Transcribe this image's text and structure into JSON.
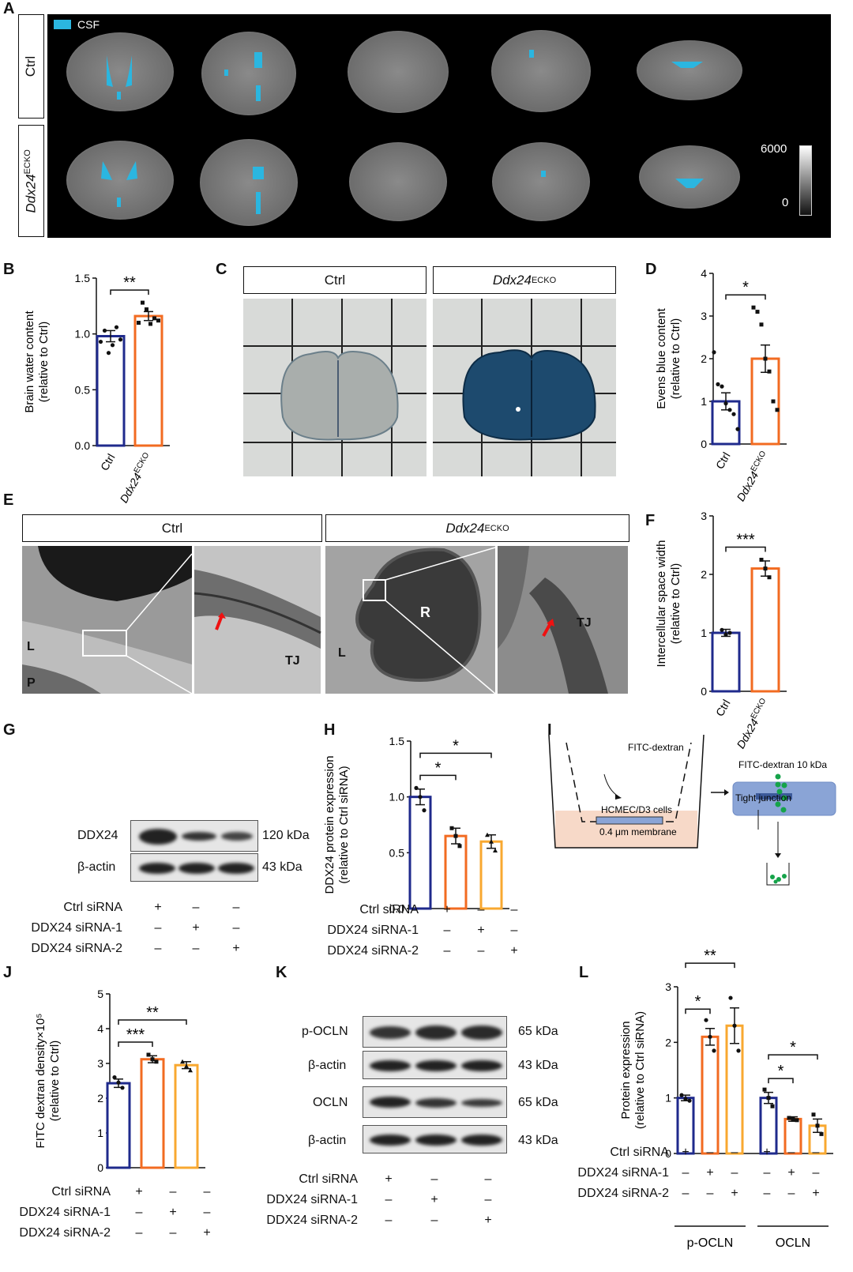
{
  "panels": {
    "A": "A",
    "B": "B",
    "C": "C",
    "D": "D",
    "E": "E",
    "F": "F",
    "G": "G",
    "H": "H",
    "I": "I",
    "J": "J",
    "K": "K",
    "L": "L"
  },
  "colors": {
    "ctrl": "#1f2a8c",
    "ko1": "#f26b21",
    "ko2": "#f8a830",
    "csf": "#2bb6e0",
    "blot_bg": "#e6e6e6"
  },
  "panelA": {
    "legend": "CSF",
    "row_ctrl": "Ctrl",
    "row_ko_main": "Ddx24",
    "row_ko_sup": "ECKO",
    "scale_max": "6000",
    "scale_min": "0"
  },
  "panelC": {
    "ctrl": "Ctrl",
    "ko_main": "Ddx24",
    "ko_sup": "ECKO"
  },
  "panelE": {
    "ctrl": "Ctrl",
    "ko_main": "Ddx24",
    "ko_sup": "ECKO",
    "labels": {
      "L": "L",
      "P": "P",
      "TJ": "TJ",
      "R": "R"
    }
  },
  "panelG": {
    "rows": [
      {
        "name": "DDX24",
        "kda": "120 kDa"
      },
      {
        "name": "β-actin",
        "kda": "43 kDa"
      }
    ],
    "conditions": [
      {
        "name": "Ctrl siRNA",
        "signs": [
          "+",
          "–",
          "–"
        ]
      },
      {
        "name": "DDX24 siRNA-1",
        "signs": [
          "–",
          "+",
          "–"
        ]
      },
      {
        "name": "DDX24 siRNA-2",
        "signs": [
          "–",
          "–",
          "+"
        ]
      }
    ]
  },
  "panelI": {
    "dextran": "FITC-dextran",
    "cells": "HCMEC/D3 cells",
    "membrane": "0.4 μm membrane",
    "dextran10": "FITC-dextran 10 kDa",
    "tj": "Tight junction"
  },
  "panelK": {
    "rows": [
      {
        "name": "p-OCLN",
        "kda": "65 kDa"
      },
      {
        "name": "β-actin",
        "kda": "43 kDa"
      },
      {
        "name": "OCLN",
        "kda": "65 kDa"
      },
      {
        "name": "β-actin",
        "kda": "43 kDa"
      }
    ],
    "conditions": [
      {
        "name": "Ctrl siRNA",
        "signs": [
          "+",
          "–",
          "–"
        ]
      },
      {
        "name": "DDX24 siRNA-1",
        "signs": [
          "–",
          "+",
          "–"
        ]
      },
      {
        "name": "DDX24 siRNA-2",
        "signs": [
          "–",
          "–",
          "+"
        ]
      }
    ]
  },
  "chart_data": [
    {
      "id": "B",
      "type": "bar",
      "categories": [
        "Ctrl",
        "Ddx24ECKO"
      ],
      "values": [
        0.98,
        1.16
      ],
      "errors": [
        0.05,
        0.04
      ],
      "points": [
        [
          0.93,
          1.03,
          0.83,
          0.9,
          1.06,
          0.95
        ],
        [
          1.1,
          1.28,
          1.22,
          1.09,
          1.14,
          1.12
        ]
      ],
      "ylabel": "Brain water content\n(relative to Ctrl)",
      "ylim": [
        0,
        1.5
      ],
      "yticks": [
        "0.0",
        "0.5",
        "1.0",
        "1.5"
      ],
      "significance": [
        {
          "from": 0,
          "to": 1,
          "label": "**"
        }
      ]
    },
    {
      "id": "D",
      "type": "bar",
      "categories": [
        "Ctrl",
        "Ddx24ECKO"
      ],
      "values": [
        1.0,
        2.0
      ],
      "errors": [
        0.2,
        0.32
      ],
      "points": [
        [
          2.15,
          1.4,
          1.35,
          0.95,
          0.8,
          0.7,
          0.35
        ],
        [
          3.2,
          3.1,
          2.8,
          2.0,
          1.7,
          1.0,
          0.8
        ]
      ],
      "ylabel": "Evens blue content\n(relative to Ctrl)",
      "ylim": [
        0,
        4
      ],
      "yticks": [
        "0",
        "1",
        "2",
        "3",
        "4"
      ],
      "significance": [
        {
          "from": 0,
          "to": 1,
          "label": "*"
        }
      ]
    },
    {
      "id": "F",
      "type": "bar",
      "categories": [
        "Ctrl",
        "Ddx24ECKO"
      ],
      "values": [
        1.0,
        2.1
      ],
      "errors": [
        0.06,
        0.13
      ],
      "points": [
        [
          1.05,
          0.97,
          1.0
        ],
        [
          2.25,
          2.1,
          1.95
        ]
      ],
      "ylabel": "Intercellular space width\n(relative to Ctrl)",
      "ylim": [
        0,
        3
      ],
      "yticks": [
        "0",
        "1",
        "2",
        "3"
      ],
      "significance": [
        {
          "from": 0,
          "to": 1,
          "label": "***"
        }
      ]
    },
    {
      "id": "H",
      "type": "bar",
      "categories": [
        "Ctrl siRNA",
        "DDX24 siRNA-1",
        "DDX24 siRNA-2"
      ],
      "values": [
        1.0,
        0.65,
        0.6
      ],
      "errors": [
        0.07,
        0.07,
        0.06
      ],
      "points": [
        [
          1.08,
          1.0,
          0.88
        ],
        [
          0.72,
          0.65,
          0.56
        ],
        [
          0.66,
          0.6,
          0.52
        ]
      ],
      "ylabel": "DDX24 protein expression\n(relative to Ctrl siRNA)",
      "ylim": [
        0,
        1.5
      ],
      "yticks": [
        "0.0",
        "0.5",
        "1.0",
        "1.5"
      ],
      "significance": [
        {
          "from": 0,
          "to": 1,
          "label": "*"
        },
        {
          "from": 0,
          "to": 2,
          "label": "*"
        }
      ]
    },
    {
      "id": "J",
      "type": "bar",
      "categories": [
        "Ctrl siRNA",
        "DDX24 siRNA-1",
        "DDX24 siRNA-2"
      ],
      "values": [
        2.43,
        3.12,
        2.95
      ],
      "errors": [
        0.12,
        0.1,
        0.1
      ],
      "points": [
        [
          2.6,
          2.45,
          2.3
        ],
        [
          3.25,
          3.12,
          3.05
        ],
        [
          3.05,
          2.92,
          2.8
        ]
      ],
      "ylabel": "FITC dextran density×10⁵\n(relative to Ctrl)",
      "ylim": [
        0,
        5
      ],
      "yticks": [
        "0",
        "1",
        "2",
        "3",
        "4",
        "5"
      ],
      "significance": [
        {
          "from": 0,
          "to": 1,
          "label": "***"
        },
        {
          "from": 0,
          "to": 2,
          "label": "**"
        }
      ]
    },
    {
      "id": "L",
      "type": "bar",
      "categories": [
        "Ctrl siRNA",
        "DDX24 siRNA-1",
        "DDX24 siRNA-2",
        "Ctrl siRNA",
        "DDX24 siRNA-1",
        "DDX24 siRNA-2"
      ],
      "groups": [
        "p-OCLN",
        "OCLN"
      ],
      "values": [
        1.0,
        2.1,
        2.3,
        1.0,
        0.62,
        0.5
      ],
      "errors": [
        0.05,
        0.15,
        0.32,
        0.1,
        0.04,
        0.12
      ],
      "points": [
        [
          1.05,
          0.98,
          0.95
        ],
        [
          2.4,
          2.1,
          1.85
        ],
        [
          2.8,
          2.3,
          1.85
        ],
        [
          1.15,
          1.0,
          0.85
        ],
        [
          0.64,
          0.62,
          0.6
        ],
        [
          0.7,
          0.5,
          0.35
        ]
      ],
      "ylabel": "Protein expression\n(relative to Ctrl siRNA)",
      "ylim": [
        0,
        3
      ],
      "yticks": [
        "0",
        "1",
        "2",
        "3"
      ],
      "significance": [
        {
          "from": 0,
          "to": 1,
          "label": "*"
        },
        {
          "from": 0,
          "to": 2,
          "label": "**"
        },
        {
          "from": 3,
          "to": 4,
          "label": "*"
        },
        {
          "from": 3,
          "to": 5,
          "label": "*"
        }
      ]
    }
  ]
}
